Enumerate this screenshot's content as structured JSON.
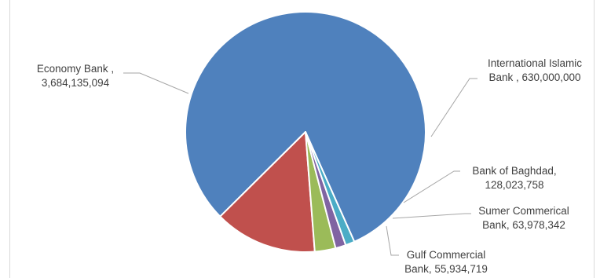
{
  "chart_data": {
    "type": "pie",
    "title": "",
    "legend": "none",
    "slices": [
      {
        "label": "Economy Bank",
        "value": 3684135094,
        "display": "3,684,135,094",
        "color": "#4f81bd"
      },
      {
        "label": "International Islamic Bank",
        "value": 630000000,
        "display": "630,000,000",
        "color": "#c0504d"
      },
      {
        "label": "Bank of Baghdad",
        "value": 128023758,
        "display": "128,023,758",
        "color": "#9bbb59"
      },
      {
        "label": "Sumer Commerical Bank",
        "value": 63978342,
        "display": "63,978,342",
        "color": "#8064a2"
      },
      {
        "label": "Gulf Commercial Bank",
        "value": 55934719,
        "display": "55,934,719",
        "color": "#4bacc6"
      }
    ],
    "data_labels": [
      [
        "Economy Bank ,",
        "3,684,135,094"
      ],
      [
        "International Islamic",
        "Bank , 630,000,000"
      ],
      [
        "Bank of Baghdad,",
        "128,023,758"
      ],
      [
        "Sumer Commerical",
        "Bank, 63,978,342"
      ],
      [
        "Gulf Commercial",
        "Bank, 55,934,719"
      ]
    ]
  }
}
